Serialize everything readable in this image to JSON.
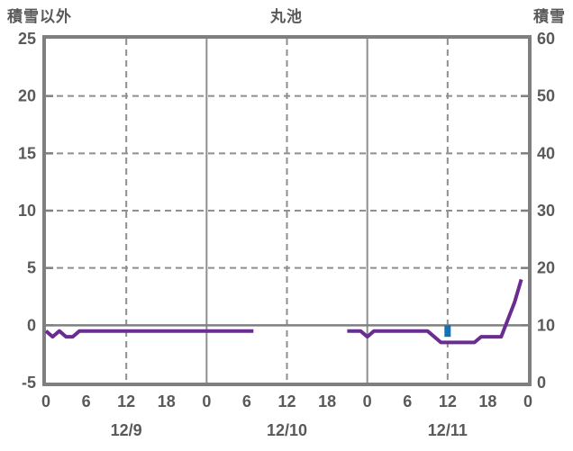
{
  "header": {
    "left_axis_title": "積雪以外",
    "chart_title": "丸池",
    "right_axis_title": "積雪"
  },
  "colors": {
    "border_gray": "#7f7f7f",
    "grid_gray": "#8f8f8f",
    "zero_line_gray": "#808080",
    "text_gray": "#595959",
    "line_purple": "#6a2c91",
    "marker_blue": "#1273b8",
    "background": "#ffffff"
  },
  "chart_data": {
    "type": "line",
    "title": "丸池",
    "grid": "dashed horizontal every 5 (left axis) and dashed vertical at 12:00 of each day; solid vertical at 00:00 day boundaries; solid gray line at left-axis 0",
    "legend_position": "none",
    "left_axis": {
      "label": "積雪以外",
      "min": -5,
      "max": 25,
      "tick_step": 5,
      "tick_labels": [
        "25",
        "20",
        "15",
        "10",
        "5",
        "0",
        "-5"
      ]
    },
    "right_axis": {
      "label": "積雪",
      "min": 0,
      "max": 60,
      "tick_step": 10,
      "tick_labels": [
        "60",
        "50",
        "40",
        "30",
        "20",
        "10",
        "0"
      ]
    },
    "x_axis": {
      "start": "12/9 00:00",
      "end": "12/12 00:00",
      "total_hours": 72,
      "tick_interval_hours": 6,
      "hour_tick_labels": [
        "0",
        "6",
        "12",
        "18",
        "0",
        "6",
        "12",
        "18",
        "0",
        "6",
        "12",
        "18",
        "0"
      ],
      "date_labels": [
        {
          "label": "12/9",
          "center_hour": 12
        },
        {
          "label": "12/10",
          "center_hour": 36
        },
        {
          "label": "12/11",
          "center_hour": 60
        }
      ]
    },
    "series": [
      {
        "name": "積雪以外(紫線)",
        "type": "line",
        "axis": "left",
        "color": "#6a2c91",
        "note": "polyline vertices as [hour_from_12/9_00:00, value]; gap (no data) between hour 31 and hour 45",
        "segments": [
          [
            [
              0,
              -0.5
            ],
            [
              1,
              -1
            ],
            [
              2,
              -0.5
            ],
            [
              3,
              -1
            ],
            [
              4,
              -1
            ],
            [
              5,
              -0.5
            ],
            [
              31,
              -0.5
            ]
          ],
          [
            [
              45,
              -0.5
            ],
            [
              47,
              -0.5
            ],
            [
              48,
              -1
            ],
            [
              49,
              -0.5
            ],
            [
              57,
              -0.5
            ],
            [
              59,
              -1.5
            ],
            [
              64,
              -1.5
            ],
            [
              65,
              -1
            ],
            [
              68,
              -1
            ],
            [
              69,
              0.5
            ],
            [
              70,
              2
            ],
            [
              71,
              4
            ]
          ]
        ]
      },
      {
        "name": "積雪(青マーカー)",
        "type": "square-marker",
        "axis": "right",
        "color": "#1273b8",
        "points": [
          [
            60,
            9
          ]
        ],
        "note": "small blue square at 12/11 12:00, value ≈9 on right axis (spans ~8-10)"
      }
    ]
  }
}
